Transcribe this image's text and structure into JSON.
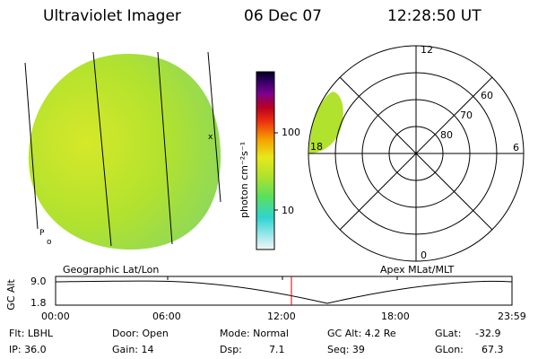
{
  "header": {
    "title": "Ultraviolet Imager",
    "date": "06 Dec 07",
    "time": "12:28:50 UT"
  },
  "colorbar": {
    "unit_label": "photon cm⁻²s⁻¹",
    "ticks": [
      "100",
      "10"
    ]
  },
  "polar_plot": {
    "mlt_labels": [
      "12",
      "6",
      "0",
      "18"
    ],
    "lat_labels": [
      "60",
      "70",
      "80"
    ]
  },
  "timeline": {
    "left_caption": "Geographic Lat/Lon",
    "right_caption": "Apex MLat/MLT",
    "y_axis_label": "GC Alt",
    "y_ticks": [
      "9.0",
      "1.8"
    ],
    "x_ticks": [
      "00:00",
      "06:00",
      "12:00",
      "18:00",
      "23:59"
    ],
    "current_marker_time": "12:28"
  },
  "status": {
    "flt": "Flt: LBHL",
    "door": "Door: Open",
    "mode": "Mode: Normal",
    "gc_alt": "GC Alt: 4.2 Re",
    "glat_label": "GLat:",
    "glat_value": "-32.9",
    "ip": "IP: 36.0",
    "gain": "Gain: 14",
    "dsp_label": "Dsp:",
    "dsp_value": "7.1",
    "seq": "Seq: 39",
    "glon_label": "GLon:",
    "glon_value": "67.3"
  },
  "colors": {
    "image_fill": "#b5e22a",
    "accent_marker": "#cc0000"
  }
}
